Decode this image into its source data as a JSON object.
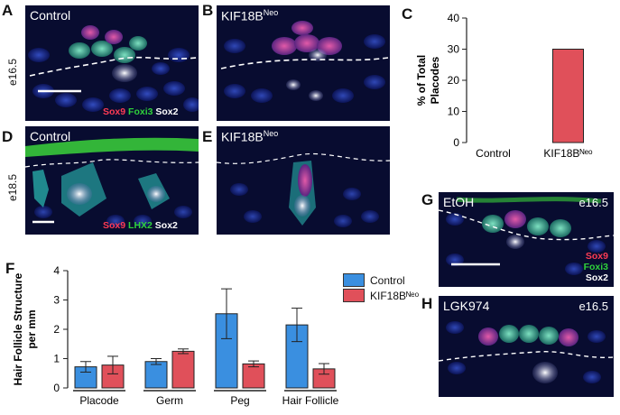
{
  "panel_labels": {
    "A": "A",
    "B": "B",
    "C": "C",
    "D": "D",
    "E": "E",
    "F": "F",
    "G": "G",
    "H": "H"
  },
  "row_labels": {
    "top": "e16.5",
    "mid": "e18.5"
  },
  "panels": {
    "A": {
      "title": "Control",
      "stains": [
        "Sox9",
        "Foxi3",
        "Sox2"
      ]
    },
    "B": {
      "title": "KIF18B",
      "title_sup": "Neo"
    },
    "D": {
      "title": "Control",
      "stains": [
        "Sox9",
        "LHX2",
        "Sox2"
      ]
    },
    "E": {
      "title": "KIF18B",
      "title_sup": "Neo"
    },
    "G": {
      "title": "EtOH",
      "stage": "e16.5",
      "stains": [
        "Sox9",
        "Foxi3",
        "Sox2"
      ]
    },
    "H": {
      "title": "LGK974",
      "stage": "e16.5"
    }
  },
  "colors": {
    "control": "#3a8fe0",
    "kif": "#e0505a",
    "sox9": "#ff3b55",
    "foxi3": "#2fd13b",
    "lhx2": "#2fd13b",
    "sox2": "#ffffff"
  },
  "chart_data": [
    {
      "id": "C",
      "type": "bar",
      "categories": [
        "Control",
        "KIF18Bᴺᵉᵒ"
      ],
      "values": [
        0,
        30
      ],
      "ylabel": "% of Total Placodes",
      "ylim": [
        0,
        40
      ],
      "yticks": [
        0,
        10,
        20,
        30,
        40
      ]
    },
    {
      "id": "F",
      "type": "bar",
      "categories": [
        "Placode",
        "Germ",
        "Peg",
        "Hair Follicle"
      ],
      "series": [
        {
          "name": "Control",
          "values": [
            0.72,
            0.9,
            2.53,
            2.15
          ],
          "errors": [
            0.18,
            0.1,
            0.85,
            0.57
          ]
        },
        {
          "name": "KIF18Bᴺᵉᵒ",
          "values": [
            0.78,
            1.25,
            0.82,
            0.65
          ],
          "errors": [
            0.3,
            0.08,
            0.1,
            0.18
          ]
        }
      ],
      "ylabel": "Hair Follicle Structure per mm",
      "ylim": [
        0,
        4
      ],
      "yticks": [
        0,
        1,
        2,
        3,
        4
      ],
      "legend": "top-right"
    }
  ]
}
